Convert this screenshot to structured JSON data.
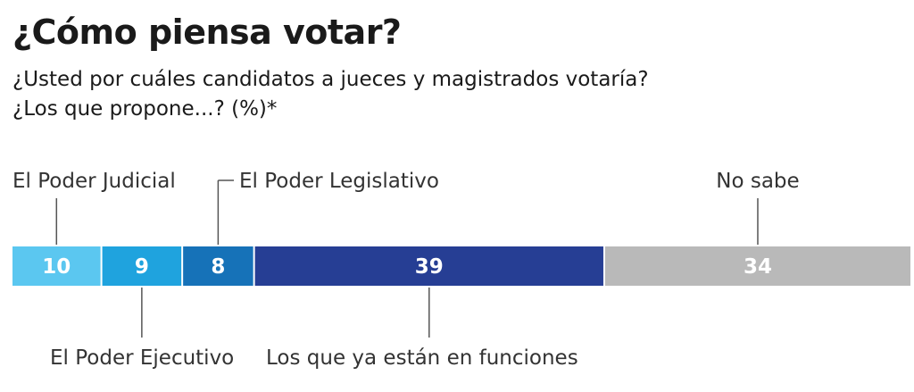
{
  "chart_data": {
    "type": "bar",
    "orientation": "horizontal-stacked",
    "title": "¿Cómo piensa votar?",
    "subtitle_lines": [
      "¿Usted por cuáles candidatos a jueces y magistrados votaría?",
      "¿Los que propone...? (%)*"
    ],
    "categories": [
      "El Poder Judicial",
      "El Poder Ejecutivo",
      "El Poder Legislativo",
      "Los que ya están en funciones",
      "No sabe"
    ],
    "values": [
      10,
      9,
      8,
      39,
      34
    ],
    "colors": [
      "#5bc7f0",
      "#1fa3de",
      "#1672b8",
      "#263e94",
      "#b9b9b9"
    ],
    "label_side": [
      "top",
      "bottom",
      "top",
      "bottom",
      "top"
    ]
  }
}
